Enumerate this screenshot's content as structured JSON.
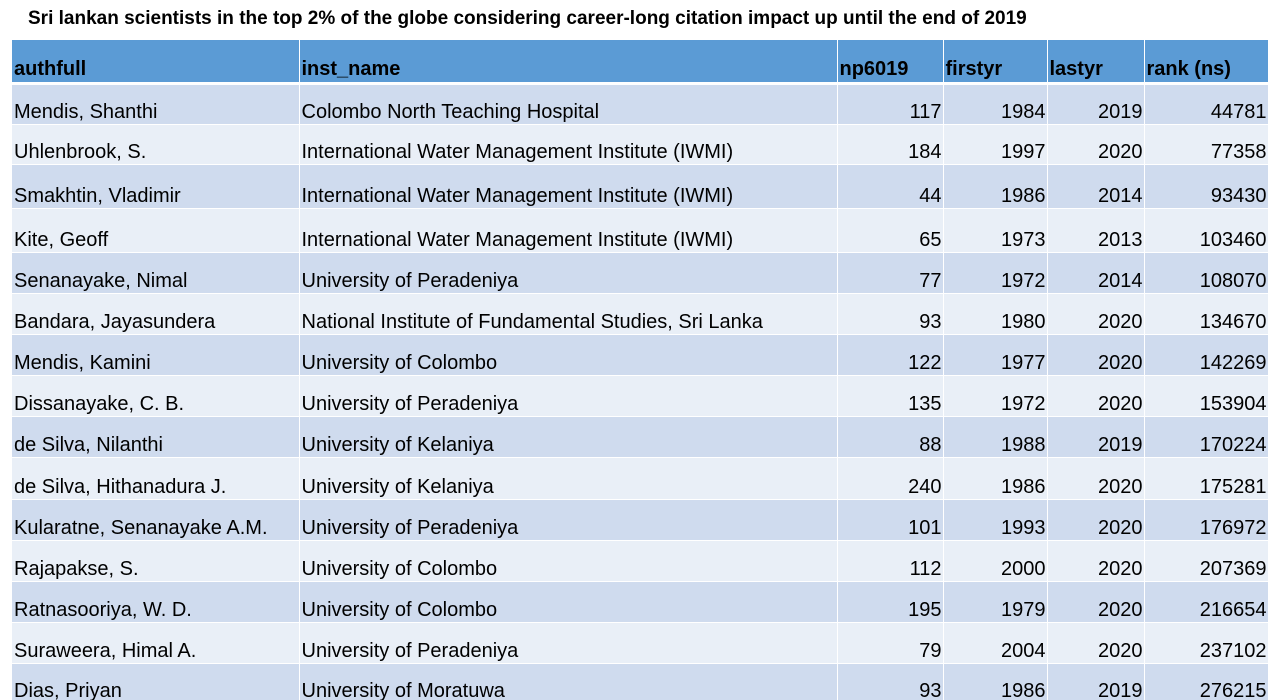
{
  "title": "Sri lankan scientists in the top 2% of the globe considering career-long citation impact up until the end of 2019",
  "colors": {
    "header_bg": "#5b9bd5",
    "row_band_dark": "#cfdbee",
    "row_band_light": "#e9eff7"
  },
  "table": {
    "columns": [
      "authfull",
      "inst_name",
      "np6019",
      "firstyr",
      "lastyr",
      "rank (ns)"
    ],
    "rows": [
      {
        "authfull": "Mendis, Shanthi",
        "inst_name": "Colombo North Teaching Hospital",
        "np6019": "117",
        "firstyr": "1984",
        "lastyr": "2019",
        "rank": "44781"
      },
      {
        "authfull": "Uhlenbrook, S.",
        "inst_name": "International Water Management Institute (IWMI)",
        "np6019": "184",
        "firstyr": "1997",
        "lastyr": "2020",
        "rank": "77358"
      },
      {
        "authfull": "Smakhtin, Vladimir",
        "inst_name": "International Water Management Institute (IWMI)",
        "np6019": "44",
        "firstyr": "1986",
        "lastyr": "2014",
        "rank": "93430"
      },
      {
        "authfull": "Kite, Geoff",
        "inst_name": "International Water Management Institute (IWMI)",
        "np6019": "65",
        "firstyr": "1973",
        "lastyr": "2013",
        "rank": "103460"
      },
      {
        "authfull": "Senanayake, Nimal",
        "inst_name": "University of Peradeniya",
        "np6019": "77",
        "firstyr": "1972",
        "lastyr": "2014",
        "rank": "108070"
      },
      {
        "authfull": "Bandara, Jayasundera",
        "inst_name": "National Institute of Fundamental Studies, Sri Lanka",
        "np6019": "93",
        "firstyr": "1980",
        "lastyr": "2020",
        "rank": "134670"
      },
      {
        "authfull": "Mendis, Kamini",
        "inst_name": "University of Colombo",
        "np6019": "122",
        "firstyr": "1977",
        "lastyr": "2020",
        "rank": "142269"
      },
      {
        "authfull": "Dissanayake, C. B.",
        "inst_name": "University of Peradeniya",
        "np6019": "135",
        "firstyr": "1972",
        "lastyr": "2020",
        "rank": "153904"
      },
      {
        "authfull": "de Silva, Nilanthi",
        "inst_name": "University of Kelaniya",
        "np6019": "88",
        "firstyr": "1988",
        "lastyr": "2019",
        "rank": "170224"
      },
      {
        "authfull": "de Silva, Hithanadura J.",
        "inst_name": "University of Kelaniya",
        "np6019": "240",
        "firstyr": "1986",
        "lastyr": "2020",
        "rank": "175281"
      },
      {
        "authfull": "Kularatne, Senanayake A.M.",
        "inst_name": "University of Peradeniya",
        "np6019": "101",
        "firstyr": "1993",
        "lastyr": "2020",
        "rank": "176972"
      },
      {
        "authfull": "Rajapakse, S.",
        "inst_name": "University of Colombo",
        "np6019": "112",
        "firstyr": "2000",
        "lastyr": "2020",
        "rank": "207369"
      },
      {
        "authfull": "Ratnasooriya, W. D.",
        "inst_name": "University of Colombo",
        "np6019": "195",
        "firstyr": "1979",
        "lastyr": "2020",
        "rank": "216654"
      },
      {
        "authfull": "Suraweera, Himal A.",
        "inst_name": "University of Peradeniya",
        "np6019": "79",
        "firstyr": "2004",
        "lastyr": "2020",
        "rank": "237102"
      },
      {
        "authfull": "Dias, Priyan",
        "inst_name": "University of Moratuwa",
        "np6019": "93",
        "firstyr": "1986",
        "lastyr": "2019",
        "rank": "276215"
      }
    ]
  }
}
